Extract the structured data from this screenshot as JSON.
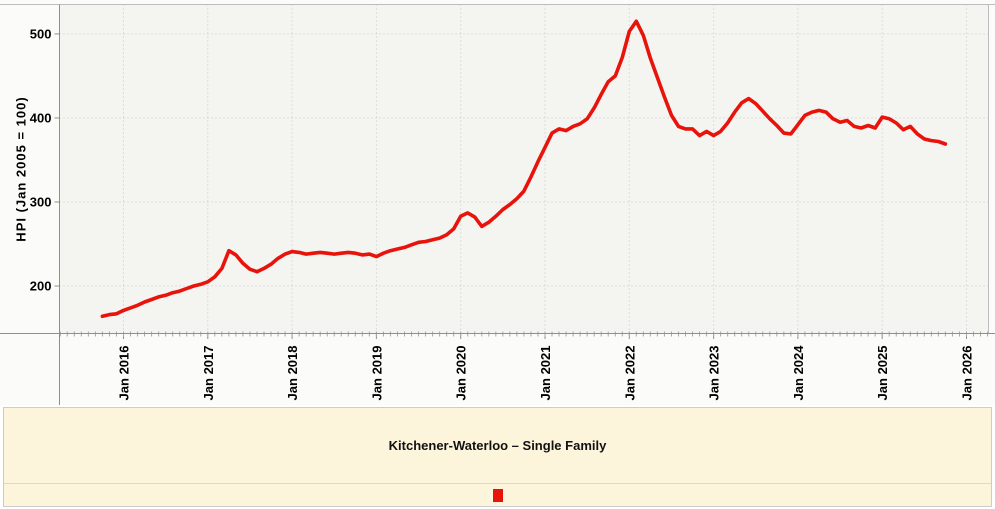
{
  "colors": {
    "accent_red": "#e8140b",
    "plot_background": "#f4f4f1",
    "legend_background": "#fcf5dc",
    "gridline": "#c6c6c6",
    "axis_line": "#8f8f8f"
  },
  "legend": {
    "title": "Kitchener-Waterloo – Single Family"
  },
  "chart_data": {
    "type": "line",
    "title": "",
    "xlabel": "",
    "ylabel": "HPI (Jan 2005 = 100)",
    "series_name": "Kitchener-Waterloo – Single Family",
    "line_color": "#e8140b",
    "grid": "dotted",
    "legend_position": "bottom",
    "x_start": "2015-10",
    "x_end": "2025-10",
    "x_interval": "month",
    "x_tick_labels": [
      "Jan 2016",
      "Jan 2017",
      "Jan 2018",
      "Jan 2019",
      "Jan 2020",
      "Jan 2021",
      "Jan 2022",
      "Jan 2023",
      "Jan 2024",
      "Jan 2025",
      "Jan 2026"
    ],
    "y_ticks": [
      200,
      300,
      400,
      500
    ],
    "ylim": [
      143.5,
      535
    ],
    "values": [
      164,
      166,
      167,
      171,
      174,
      177,
      181,
      184,
      187,
      189,
      192,
      194,
      197,
      200,
      202,
      205,
      211,
      221,
      242,
      237,
      227,
      220,
      217,
      221,
      226,
      233,
      238,
      241,
      240,
      238,
      239,
      240,
      239,
      238,
      239,
      240,
      239,
      237,
      238,
      235,
      239,
      242,
      244,
      246,
      249,
      252,
      253,
      255,
      257,
      261,
      268,
      283,
      287,
      282,
      271,
      276,
      283,
      291,
      297,
      304,
      313,
      330,
      348,
      365,
      382,
      387,
      385,
      390,
      393,
      399,
      412,
      428,
      443,
      450,
      472,
      503,
      515,
      498,
      471,
      448,
      425,
      403,
      390,
      387,
      387,
      379,
      384,
      379,
      384,
      394,
      407,
      418,
      423,
      417,
      408,
      399,
      391,
      382,
      381,
      392,
      403,
      407,
      409,
      407,
      399,
      395,
      397,
      390,
      388,
      391,
      388,
      401,
      399,
      394,
      386,
      390,
      381,
      375,
      373,
      372,
      369
    ]
  }
}
